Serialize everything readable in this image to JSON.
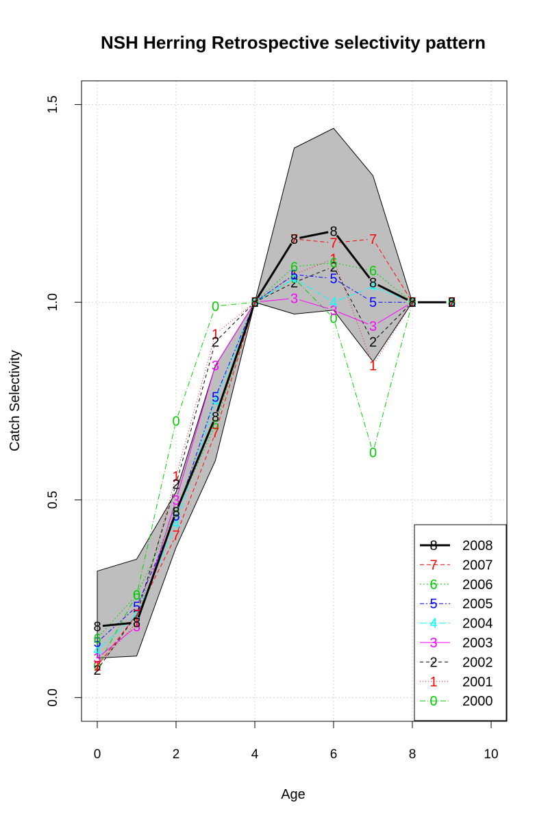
{
  "chart_data": {
    "type": "line",
    "title": "NSH Herring Retrospective selectivity pattern",
    "xlabel": "Age",
    "ylabel": "Catch Selectivity",
    "xlim": [
      -0.4,
      10.4
    ],
    "ylim": [
      -0.06,
      1.56
    ],
    "xticks": [
      0,
      2,
      4,
      6,
      8,
      10
    ],
    "yticks": [
      0.0,
      0.5,
      1.0,
      1.5
    ],
    "xtick_labels": [
      "0",
      "2",
      "4",
      "6",
      "8",
      "10"
    ],
    "ytick_labels": [
      "0.0",
      "0.5",
      "1.0",
      "1.5"
    ],
    "grid": true,
    "legend_position": "bottom-right",
    "band": {
      "x": [
        0,
        1,
        2,
        3,
        4,
        5,
        6,
        7,
        8
      ],
      "upper": [
        0.32,
        0.35,
        0.52,
        0.84,
        1.0,
        1.39,
        1.44,
        1.32,
        1.0
      ],
      "lower": [
        0.1,
        0.105,
        0.38,
        0.6,
        1.0,
        0.97,
        0.98,
        0.85,
        1.0
      ],
      "fill": "#bebebe"
    },
    "series": [
      {
        "name": "2008",
        "symbol": "8",
        "color": "#000000",
        "dash": "",
        "width": 3,
        "x": [
          0,
          1,
          2,
          3,
          4,
          5,
          6,
          7,
          8,
          9
        ],
        "y": [
          0.18,
          0.19,
          0.47,
          0.71,
          1.0,
          1.16,
          1.18,
          1.05,
          1.0,
          1.0
        ]
      },
      {
        "name": "2007",
        "symbol": "7",
        "color": "#ff0000",
        "dash": "6,4",
        "width": 1,
        "x": [
          0,
          1,
          2,
          3,
          4,
          5,
          6,
          7,
          8,
          9
        ],
        "y": [
          0.08,
          0.21,
          0.41,
          0.67,
          1.0,
          1.16,
          1.15,
          1.16,
          1.0,
          1.0
        ]
      },
      {
        "name": "2006",
        "symbol": "6",
        "color": "#00cd00",
        "dash": "2,3",
        "width": 1,
        "x": [
          0,
          1,
          2,
          3,
          4,
          5,
          6,
          7,
          8,
          9
        ],
        "y": [
          0.15,
          0.26,
          0.47,
          0.69,
          1.0,
          1.09,
          1.1,
          1.08,
          1.0,
          1.0
        ]
      },
      {
        "name": "2005",
        "symbol": "5",
        "color": "#0000ff",
        "dash": "6,3,2,3",
        "width": 1,
        "x": [
          0,
          1,
          2,
          3,
          4,
          5,
          6,
          7,
          8,
          9
        ],
        "y": [
          0.14,
          0.23,
          0.46,
          0.76,
          1.0,
          1.07,
          1.06,
          1.0,
          1.0,
          1.0
        ]
      },
      {
        "name": "2004",
        "symbol": "4",
        "color": "#00ffff",
        "dash": "10,4",
        "width": 1,
        "x": [
          0,
          1,
          2,
          3,
          4,
          5,
          6,
          7,
          8,
          9
        ],
        "y": [
          0.12,
          0.21,
          0.44,
          0.75,
          1.0,
          1.06,
          1.0,
          1.04,
          1.0,
          1.0
        ]
      },
      {
        "name": "2003",
        "symbol": "3",
        "color": "#ff00ff",
        "dash": "",
        "width": 1,
        "x": [
          0,
          1,
          2,
          3,
          4,
          5,
          6,
          7,
          8,
          9
        ],
        "y": [
          0.1,
          0.18,
          0.5,
          0.84,
          1.0,
          1.01,
          0.98,
          0.94,
          1.0,
          1.0
        ]
      },
      {
        "name": "2002",
        "symbol": "2",
        "color": "#000000",
        "dash": "5,4",
        "width": 1,
        "x": [
          0,
          1,
          2,
          3,
          4,
          5,
          6,
          7,
          8,
          9
        ],
        "y": [
          0.07,
          0.21,
          0.54,
          0.9,
          1.0,
          1.05,
          1.09,
          0.9,
          1.0,
          1.0
        ]
      },
      {
        "name": "2001",
        "symbol": "1",
        "color": "#ff0000",
        "dash": "1,3",
        "width": 1,
        "x": [
          0,
          1,
          2,
          3,
          4,
          5,
          6,
          7,
          8,
          9
        ],
        "y": [
          0.08,
          0.19,
          0.56,
          0.92,
          1.0,
          1.07,
          1.11,
          0.84,
          1.0,
          1.0
        ]
      },
      {
        "name": "2000",
        "symbol": "0",
        "color": "#00cd00",
        "dash": "8,3,1,3",
        "width": 1,
        "x": [
          0,
          1,
          2,
          3,
          4,
          5,
          6,
          7,
          8,
          9
        ],
        "y": [
          0.08,
          0.26,
          0.7,
          0.99,
          1.0,
          1.06,
          0.96,
          0.62,
          1.0,
          1.0
        ]
      }
    ]
  }
}
